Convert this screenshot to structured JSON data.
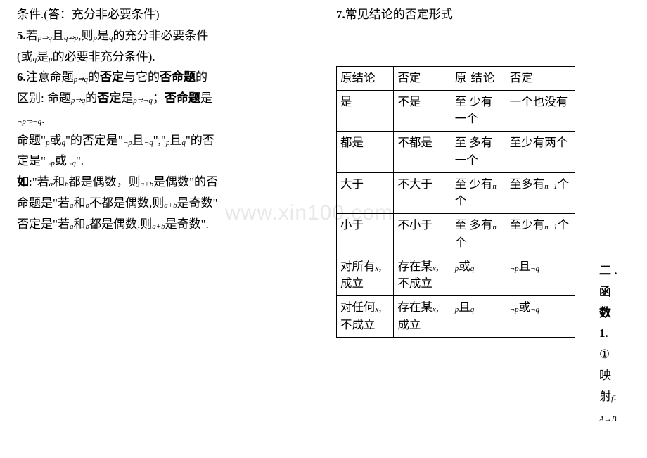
{
  "left": {
    "l1": "条件.(答：充分非必要条件)",
    "l2a": "5.",
    "l2b": "若",
    "l2c": "p⇒q",
    "l2d": "且",
    "l2e": "q⇏p",
    "l2f": ",则",
    "l2g": "p",
    "l2h": "是",
    "l2i": "q",
    "l2j": "的充分非必要条件",
    "l3a": "(或",
    "l3b": "q",
    "l3c": "是",
    "l3d": "p",
    "l3e": "的必要非充分条件).",
    "l4a": "6.",
    "l4b": "注意命题",
    "l4c": "p⇒q",
    "l4d": "的",
    "l4e": "否定",
    "l4f": "与它的",
    "l4g": "否命题",
    "l4h": "的",
    "l5a": "区别:  命题",
    "l5b": "p⇒q",
    "l5c": "的",
    "l5d": "否定",
    "l5e": "是",
    "l5f": "p⇒¬q",
    "l5g": "；",
    "l5h": "否命题",
    "l5i": "是",
    "l6": "¬p⇒¬q",
    "l6b": ".",
    "l7a": "命题\"",
    "l7b": "p",
    "l7c": "或",
    "l7d": "q",
    "l7e": "\"的否定是\"",
    "l7f": "¬p",
    "l7g": "且",
    "l7h": "¬q",
    "l7i": "\",\"",
    "l7j": "p",
    "l7k": "且",
    "l7l": "q",
    "l7m": "\"的否",
    "l8a": "定是\"",
    "l8b": "¬p",
    "l8c": "或",
    "l8d": "¬q",
    "l8e": "\".",
    "l9a": "如",
    "l9b": ":\"若",
    "l9c": "a",
    "l9d": "和",
    "l9e": "b",
    "l9f": "都是偶数，则",
    "l9g": "a+b",
    "l9h": "是偶数\"的否",
    "l10a": "命题是\"若",
    "l10b": "a",
    "l10c": "和",
    "l10d": "b",
    "l10e": "不都是偶数,则",
    "l10f": "a+b",
    "l10g": "是奇数\"",
    "l11a": "否定是\"若",
    "l11b": "a",
    "l11c": "和",
    "l11d": "b",
    "l11e": "都是偶数,则",
    "l11f": "a+b",
    "l11g": "是奇数\"."
  },
  "rightTitle": {
    "num": "7.",
    "txt": "常见结论的否定形式"
  },
  "table": {
    "h1": "原结论",
    "h2": "否定",
    "h3": "原 结论",
    "h4": "否定",
    "r1c1": "是",
    "r1c2": "不是",
    "r1c3": "至 少有 一个",
    "r1c4": "一个也没有",
    "r2c1": "都是",
    "r2c2": "不都是",
    "r2c3": "至 多有 一个",
    "r2c4": "至少有两个",
    "r3c1": "大于",
    "r3c2": "不大于",
    "r3c3a": "至 少有",
    "r3c3b": "n",
    "r3c3c": "个",
    "r3c4a": "至多有",
    "r3c4b": "n−1",
    "r3c4c": "个",
    "r4c1": "小于",
    "r4c2": "不小于",
    "r4c3a": "至 多有",
    "r4c3b": "n",
    "r4c3c": "个",
    "r4c4a": "至少有",
    "r4c4b": "n+1",
    "r4c4c": "个",
    "r5c1a": "对所有",
    "r5c1b": "x",
    "r5c1c": ",成立",
    "r5c2a": "存在某",
    "r5c2b": "x",
    "r5c2c": ",不成立",
    "r5c3a": "p",
    "r5c3b": "或",
    "r5c3c": "q",
    "r5c4a": "¬p",
    "r5c4b": "且",
    "r5c4c": "¬q",
    "r6c1a": "对任何",
    "r6c1b": "x",
    "r6c1c": ",不成立",
    "r6c2a": "存在某",
    "r6c2b": "x",
    "r6c2c": ",成立",
    "r6c3a": "p",
    "r6c3b": "且",
    "r6c3c": "q",
    "r6c4a": "¬p",
    "r6c4b": "或",
    "r6c4c": "¬q"
  },
  "far": {
    "a": "二 .",
    "b": "函",
    "c": "数",
    "d": "1.",
    "e": "①",
    "f": "映",
    "g": "射",
    "h": "f",
    "i": ":",
    "j": "A→B"
  },
  "watermark": "www.xin100.com"
}
